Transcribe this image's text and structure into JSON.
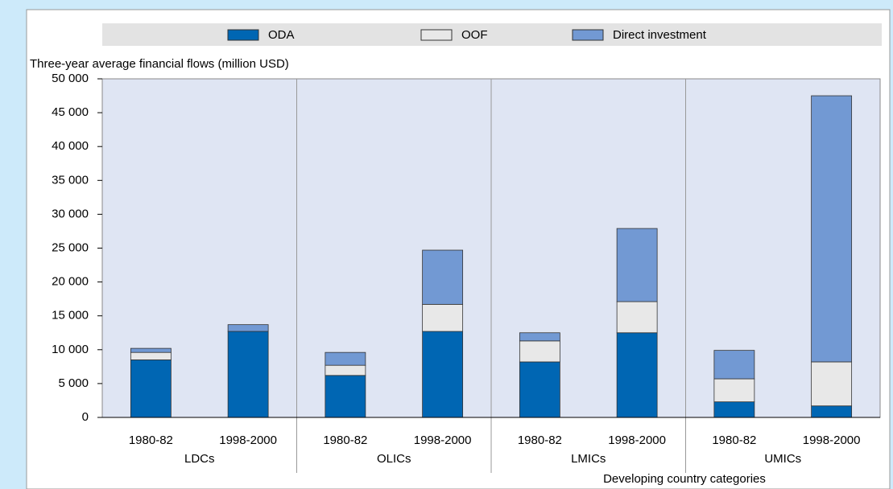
{
  "chart_data": {
    "type": "stacked_bar",
    "y_axis_label": "Three-year average financial flows (million USD)",
    "x_axis_label": "Developing country categories",
    "categories": [
      "1980-82",
      "1998-2000",
      "1980-82",
      "1998-2000",
      "1980-82",
      "1998-2000",
      "1980-82",
      "1998-2000"
    ],
    "groups": [
      "LDCs",
      "OLICs",
      "LMICs",
      "UMICs"
    ],
    "series": [
      {
        "name": "ODA",
        "color": "#0066b3",
        "values": [
          8500,
          12700,
          6200,
          12700,
          8200,
          12500,
          2300,
          1700
        ]
      },
      {
        "name": "OOF",
        "color": "#e8e8e8",
        "values": [
          1100,
          0,
          1500,
          4000,
          3100,
          4600,
          3400,
          6500
        ]
      },
      {
        "name": "Direct investment",
        "color": "#7299d3",
        "values": [
          600,
          1000,
          1900,
          8000,
          1200,
          10800,
          4200,
          39300
        ]
      }
    ],
    "ylim": [
      0,
      50000
    ],
    "yticks": [
      0,
      {
        "value": 5000,
        "label": "5 000"
      },
      {
        "value": 10000,
        "label": "10 000"
      },
      {
        "value": 15000,
        "label": "15 000"
      },
      {
        "value": 20000,
        "label": "20 000"
      },
      {
        "value": 25000,
        "label": "25 000"
      },
      {
        "value": 30000,
        "label": "30 000"
      },
      {
        "value": 35000,
        "label": "35 000"
      },
      {
        "value": 40000,
        "label": "40 000"
      },
      {
        "value": 45000,
        "label": "45 000"
      },
      {
        "value": 50000,
        "label": "50 000"
      }
    ],
    "legend": "top"
  }
}
